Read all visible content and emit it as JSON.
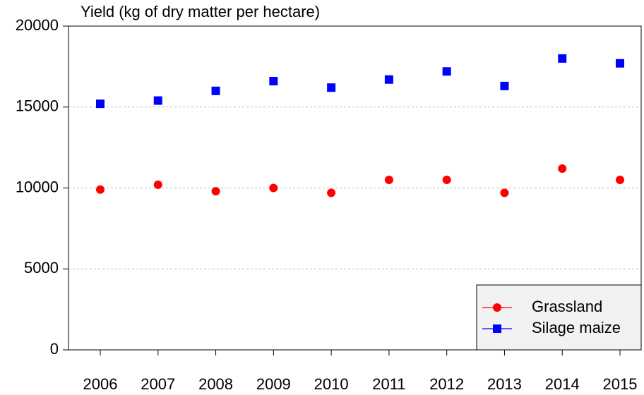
{
  "chart_data": {
    "type": "line",
    "y_label": "Yield (kg of dry matter per hectare)",
    "categories": [
      "2006",
      "2007",
      "2008",
      "2009",
      "2010",
      "2011",
      "2012",
      "2013",
      "2014",
      "2015"
    ],
    "series": [
      {
        "name": "Grassland",
        "color": "#ff0000",
        "marker": "circle",
        "values": [
          9900,
          10200,
          9800,
          10000,
          9700,
          10500,
          10500,
          9700,
          11200,
          10500
        ]
      },
      {
        "name": "Silage maize",
        "color": "#0000ff",
        "marker": "square",
        "values": [
          15200,
          15400,
          16000,
          16600,
          16200,
          16700,
          17200,
          16300,
          18000,
          17700
        ]
      }
    ],
    "ylim": [
      0,
      20000
    ],
    "yticks": [
      0,
      5000,
      10000,
      15000,
      20000
    ],
    "grid": true,
    "legend": "lower right"
  }
}
